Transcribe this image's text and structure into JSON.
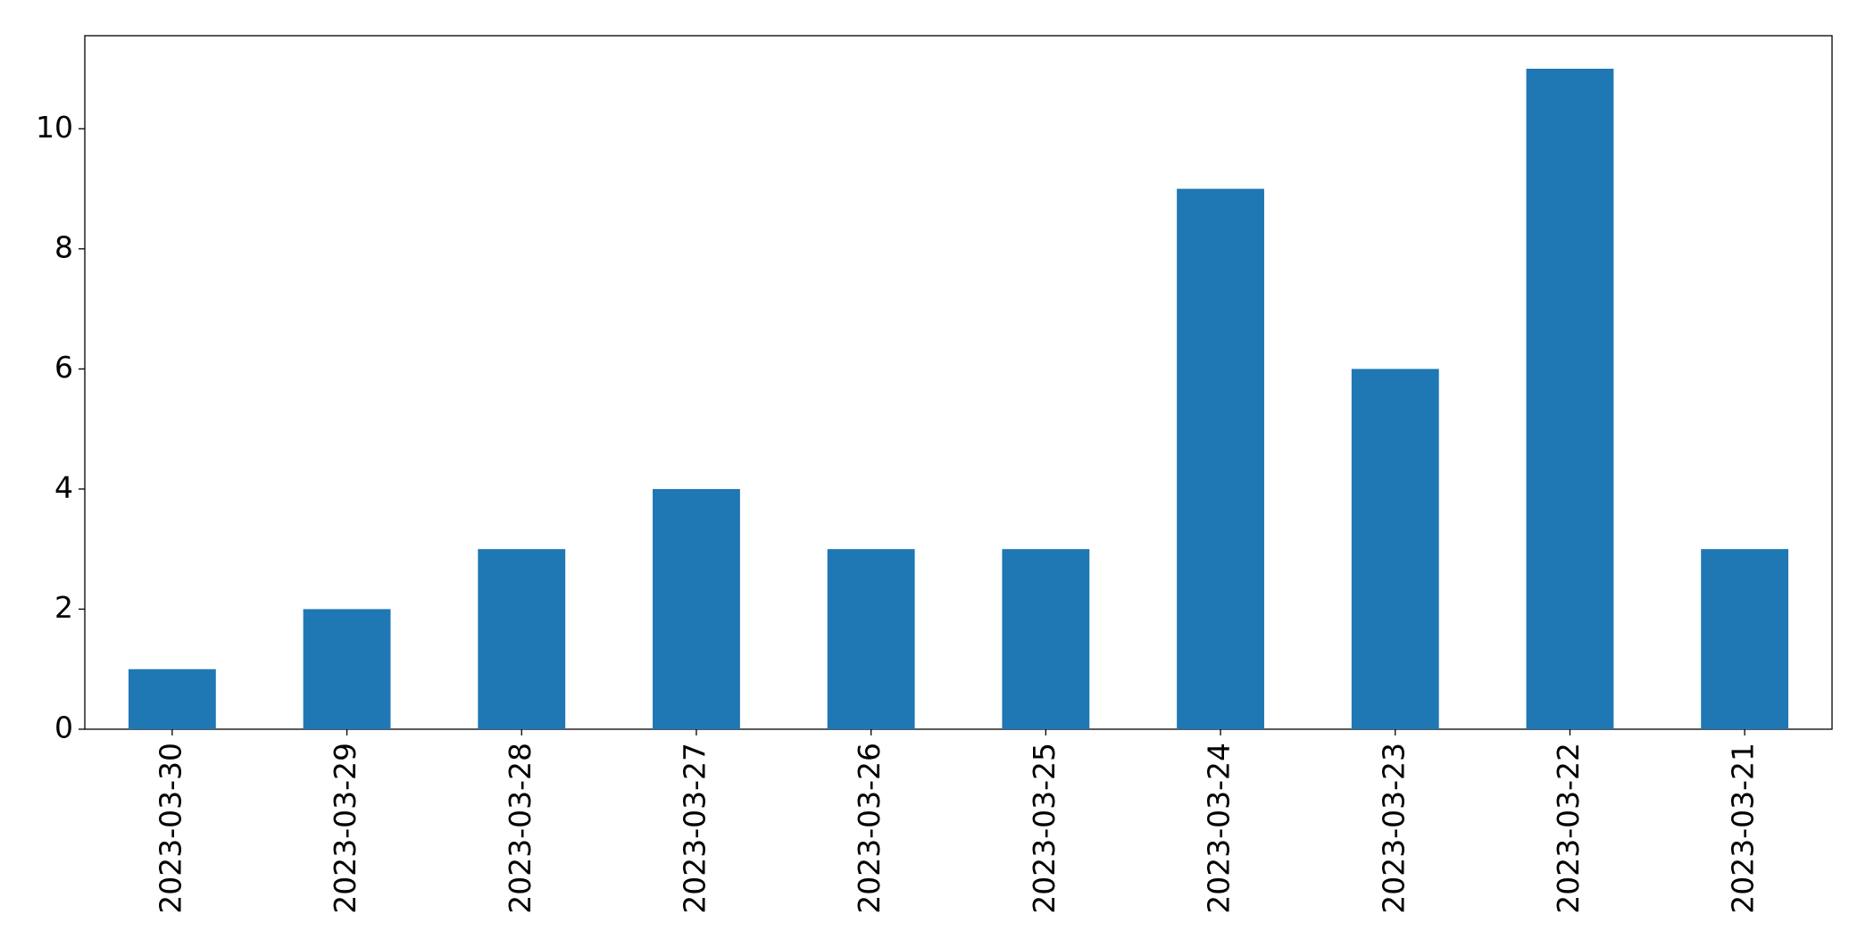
{
  "chart_data": {
    "type": "bar",
    "categories": [
      "2023-03-30",
      "2023-03-29",
      "2023-03-28",
      "2023-03-27",
      "2023-03-26",
      "2023-03-25",
      "2023-03-24",
      "2023-03-23",
      "2023-03-22",
      "2023-03-21"
    ],
    "values": [
      1,
      2,
      3,
      4,
      3,
      3,
      9,
      6,
      11,
      3
    ],
    "color": "#1f77b4",
    "ylim": [
      0,
      11.55
    ],
    "yticks": [
      0,
      2,
      4,
      6,
      8,
      10
    ],
    "grid": false
  }
}
